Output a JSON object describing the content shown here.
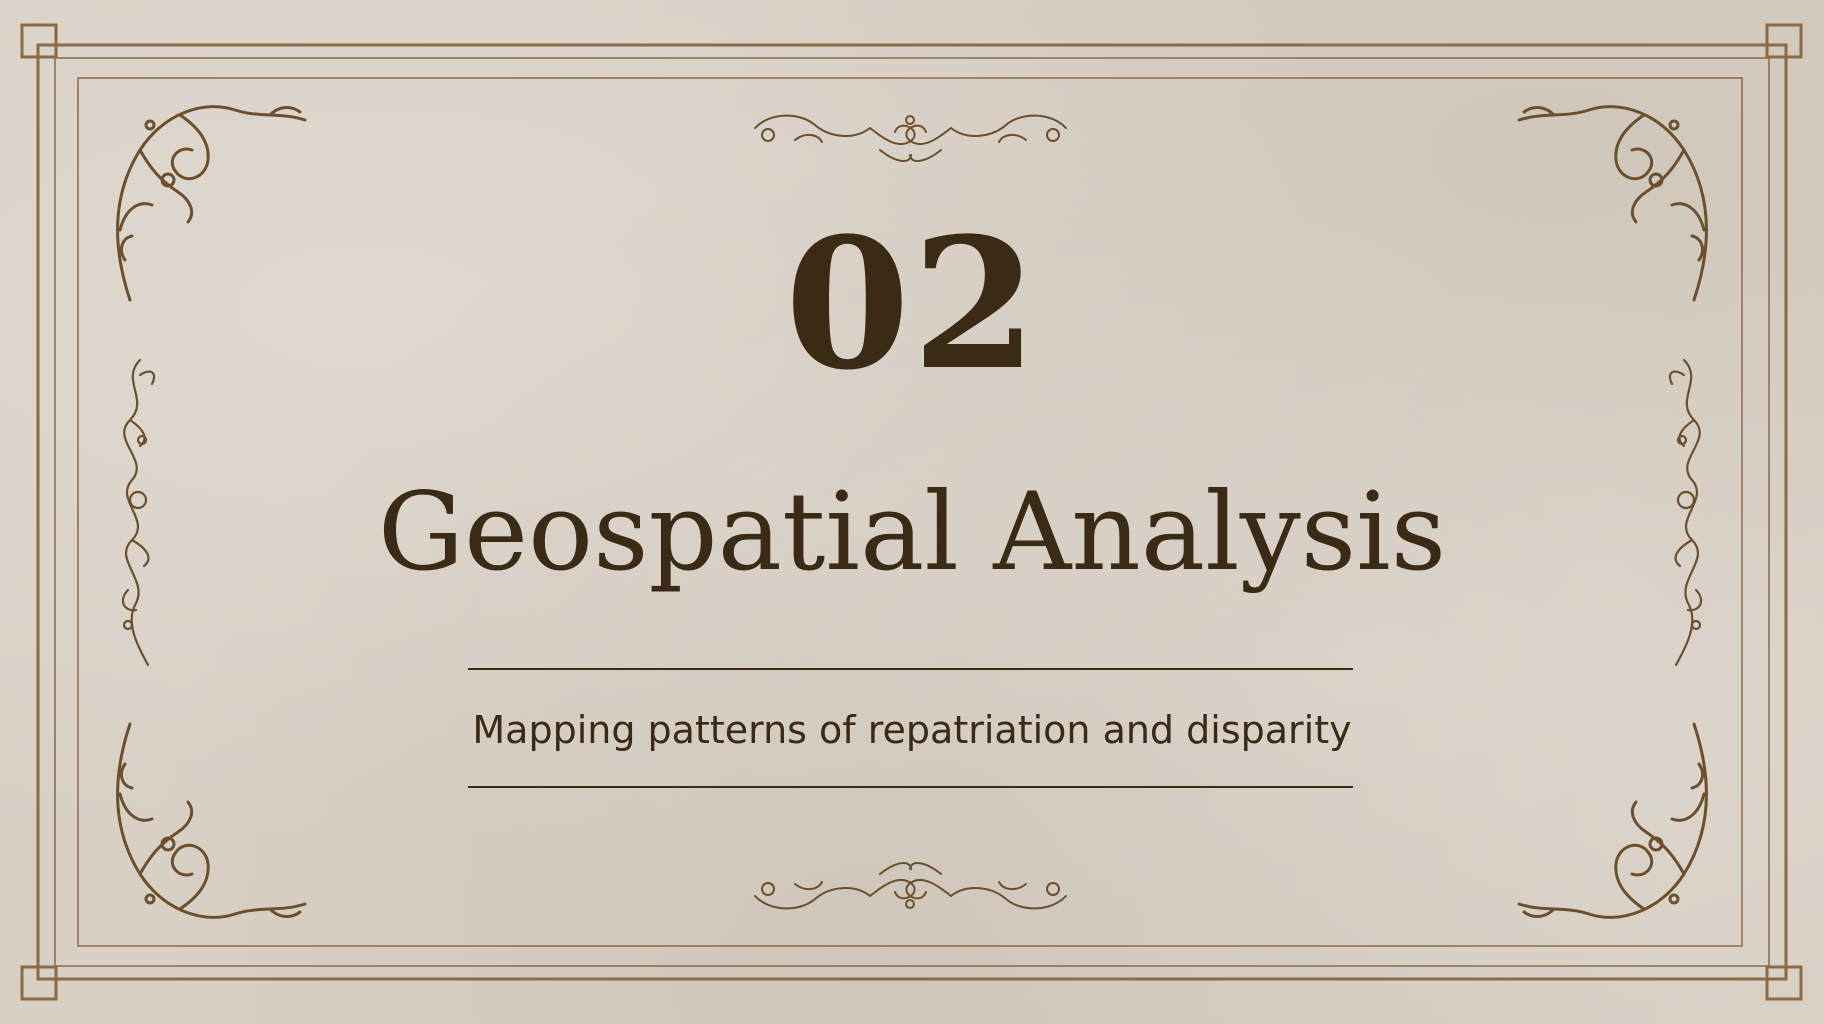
{
  "slide": {
    "number": "02",
    "title": "Geospatial Analysis",
    "subtitle": "Mapping patterns of repatriation and disparity"
  },
  "colors": {
    "background": "#d8d0c5",
    "border": "#8b6a44",
    "text": "#3b2a14",
    "ornament": "#6e4f2c"
  },
  "decorations": {
    "corner_ornaments": [
      "flourish-icon",
      "flourish-icon",
      "flourish-icon",
      "flourish-icon"
    ],
    "side_ornaments": [
      "vine-icon",
      "vine-icon"
    ],
    "center_ornaments": [
      "scroll-icon",
      "scroll-icon"
    ]
  }
}
